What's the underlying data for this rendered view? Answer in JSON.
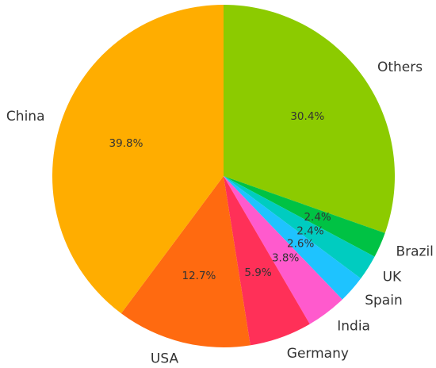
{
  "chart_data": {
    "type": "pie",
    "title": "",
    "start_angle_deg": 90,
    "direction": "clockwise",
    "slices": [
      {
        "label": "Others",
        "value": 30.4,
        "pct_label": "30.4%",
        "color": "#8ccb00"
      },
      {
        "label": "Brazil",
        "value": 2.4,
        "pct_label": "2.4%",
        "color": "#00c244"
      },
      {
        "label": "UK",
        "value": 2.4,
        "pct_label": "2.4%",
        "color": "#00ccc0"
      },
      {
        "label": "Spain",
        "value": 2.6,
        "pct_label": "2.6%",
        "color": "#1ec3ff"
      },
      {
        "label": "India",
        "value": 3.8,
        "pct_label": "3.8%",
        "color": "#ff5acd"
      },
      {
        "label": "Germany",
        "value": 5.9,
        "pct_label": "5.9%",
        "color": "#ff3058"
      },
      {
        "label": "USA",
        "value": 12.7,
        "pct_label": "12.7%",
        "color": "#ff6a10"
      },
      {
        "label": "China",
        "value": 39.8,
        "pct_label": "39.8%",
        "color": "#ffad00"
      }
    ]
  }
}
